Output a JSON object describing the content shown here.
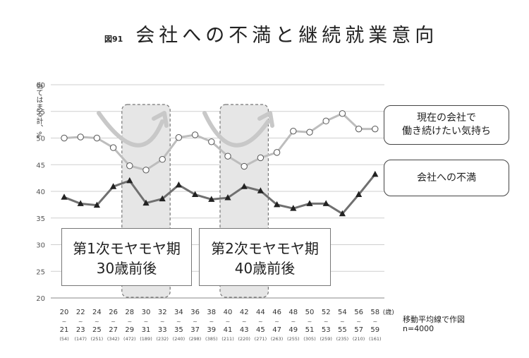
{
  "header": {
    "figure_number": "図91",
    "title": "会社への不満と継続就業意向"
  },
  "chart_data": {
    "type": "line",
    "ylabel": "当てはまる計、%",
    "ylim": [
      20,
      60
    ],
    "y_ticks": [
      "20",
      "25",
      "30",
      "35",
      "40",
      "45",
      "50",
      "55",
      "60"
    ],
    "grid": true,
    "x_age_start": [
      "20",
      "22",
      "24",
      "26",
      "28",
      "30",
      "32",
      "34",
      "36",
      "38",
      "40",
      "42",
      "44",
      "46",
      "48",
      "50",
      "52",
      "54",
      "56",
      "58"
    ],
    "x_age_end": [
      "21",
      "23",
      "25",
      "27",
      "29",
      "31",
      "33",
      "35",
      "37",
      "39",
      "41",
      "43",
      "45",
      "47",
      "49",
      "51",
      "53",
      "55",
      "57",
      "59"
    ],
    "x_counts": [
      "(54)",
      "(147)",
      "(251)",
      "(342)",
      "(472)",
      "(189)",
      "(232)",
      "(240)",
      "(298)",
      "(385)",
      "(211)",
      "(220)",
      "(271)",
      "(263)",
      "(255)",
      "(305)",
      "(259)",
      "(235)",
      "(210)",
      "(161)"
    ],
    "x_unit": "(歳)",
    "series": [
      {
        "name": "現在の会社で働き続けたい気持ち",
        "marker": "circle",
        "color": "#bdbdbd",
        "values": [
          50.0,
          50.2,
          50.0,
          48.2,
          44.8,
          44.0,
          46.0,
          50.1,
          50.6,
          49.3,
          46.6,
          44.7,
          46.3,
          47.3,
          51.3,
          51.1,
          53.2,
          54.6,
          51.7,
          51.7
        ]
      },
      {
        "name": "会社への不満",
        "marker": "triangle",
        "color": "#707070",
        "values": [
          38.9,
          37.7,
          37.4,
          40.9,
          42.0,
          37.8,
          38.6,
          41.2,
          39.4,
          38.5,
          38.8,
          40.9,
          40.1,
          37.5,
          36.8,
          37.7,
          37.7,
          35.8,
          39.4,
          43.2
        ]
      }
    ],
    "highlight_ranges": [
      {
        "from_age": "28",
        "to_age": "32"
      },
      {
        "from_age": "40",
        "to_age": "44"
      }
    ]
  },
  "legend": {
    "current_line1": "現在の会社で",
    "current_line2": "働き続けたい気持ち",
    "dissatisfaction": "会社への不満"
  },
  "phases": [
    {
      "line1": "第1次モヤモヤ期",
      "line2": "30歳前後"
    },
    {
      "line1": "第2次モヤモヤ期",
      "line2": "40歳前後"
    }
  ],
  "note": {
    "method": "移動平均線で作図",
    "sample": "n=4000"
  }
}
